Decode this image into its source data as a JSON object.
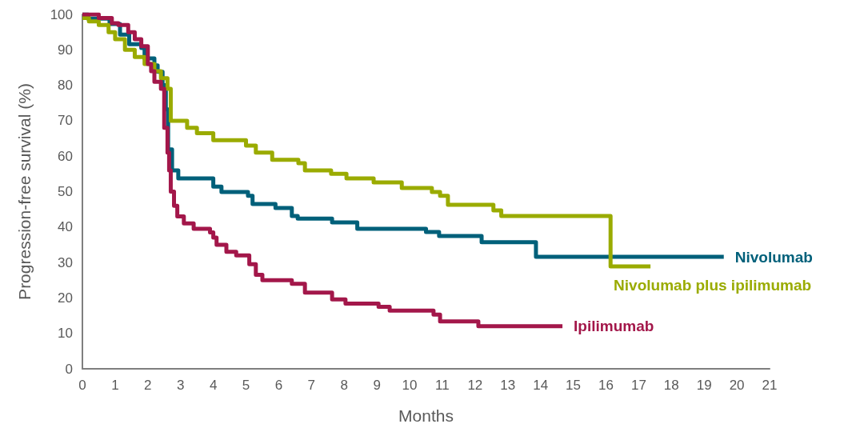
{
  "chart_data": {
    "type": "step",
    "xlabel": "Months",
    "ylabel": "Progression-free survival (%)",
    "xlim": [
      0,
      21
    ],
    "xticks": [
      0,
      1,
      2,
      3,
      4,
      5,
      6,
      7,
      8,
      9,
      10,
      11,
      12,
      13,
      14,
      15,
      16,
      17,
      18,
      19,
      20,
      21
    ],
    "ylim": [
      0,
      100
    ],
    "yticks": [
      0,
      10,
      20,
      30,
      40,
      50,
      60,
      70,
      80,
      90,
      100
    ],
    "grid": false,
    "legend": false,
    "marker": "none",
    "series": [
      {
        "name": "Nivolumab",
        "color": "#00607a",
        "x": [
          0,
          0.17,
          0.83,
          1.15,
          1.43,
          1.8,
          1.9,
          2.2,
          2.3,
          2.45,
          2.55,
          2.62,
          2.74,
          2.93,
          4.0,
          4.25,
          5.06,
          5.2,
          5.9,
          6.4,
          6.58,
          7.63,
          8.4,
          10.5,
          10.9,
          12.2,
          13.86,
          19.6
        ],
        "values": [
          100,
          98.8,
          97.3,
          94.3,
          91.6,
          90.5,
          87.6,
          85.6,
          83.8,
          80,
          73.2,
          61.9,
          56,
          53.7,
          51.4,
          49.9,
          48.8,
          46.5,
          45.4,
          43.1,
          42.4,
          41.3,
          39.5,
          38.6,
          37.5,
          35.7,
          31.6,
          31.6
        ]
      },
      {
        "name": "Nivolumab plus ipilimumab",
        "color": "#9aab00",
        "x": [
          0,
          0.2,
          0.5,
          0.8,
          1.0,
          1.3,
          1.6,
          1.9,
          2.2,
          2.4,
          2.6,
          2.7,
          3.2,
          3.5,
          4.0,
          5.0,
          5.3,
          5.8,
          6.6,
          6.8,
          7.6,
          8.07,
          8.9,
          9.76,
          10.68,
          10.93,
          11.17,
          12.56,
          12.8,
          16.14,
          17.36
        ],
        "values": [
          99,
          98,
          97,
          95,
          93,
          90,
          88,
          86,
          84,
          82,
          79,
          70,
          68,
          66.5,
          64.5,
          63,
          61,
          59,
          58,
          56,
          55,
          53.7,
          52.6,
          51,
          49.9,
          48.8,
          46.3,
          44.7,
          43.1,
          28.9,
          28.9
        ]
      },
      {
        "name": "Ipilimumab",
        "color": "#a3174a",
        "x": [
          0,
          0.5,
          0.9,
          1.1,
          1.4,
          1.6,
          1.8,
          2.0,
          2.1,
          2.2,
          2.4,
          2.5,
          2.6,
          2.65,
          2.7,
          2.8,
          2.9,
          3.1,
          3.4,
          3.9,
          4.0,
          4.1,
          4.4,
          4.7,
          5.1,
          5.3,
          5.5,
          6.4,
          6.8,
          7.63,
          8.04,
          9.05,
          9.39,
          10.73,
          10.93,
          12.1,
          14.67
        ],
        "values": [
          100,
          99,
          97.5,
          97,
          95,
          93,
          91,
          86,
          84,
          81,
          79,
          68,
          61,
          56,
          50,
          46,
          43,
          41,
          39.5,
          38.5,
          37,
          35,
          33,
          32,
          29.5,
          26.5,
          25,
          24,
          21.5,
          19.6,
          18.4,
          17.5,
          16.4,
          15.3,
          13.4,
          12,
          12
        ]
      }
    ]
  }
}
